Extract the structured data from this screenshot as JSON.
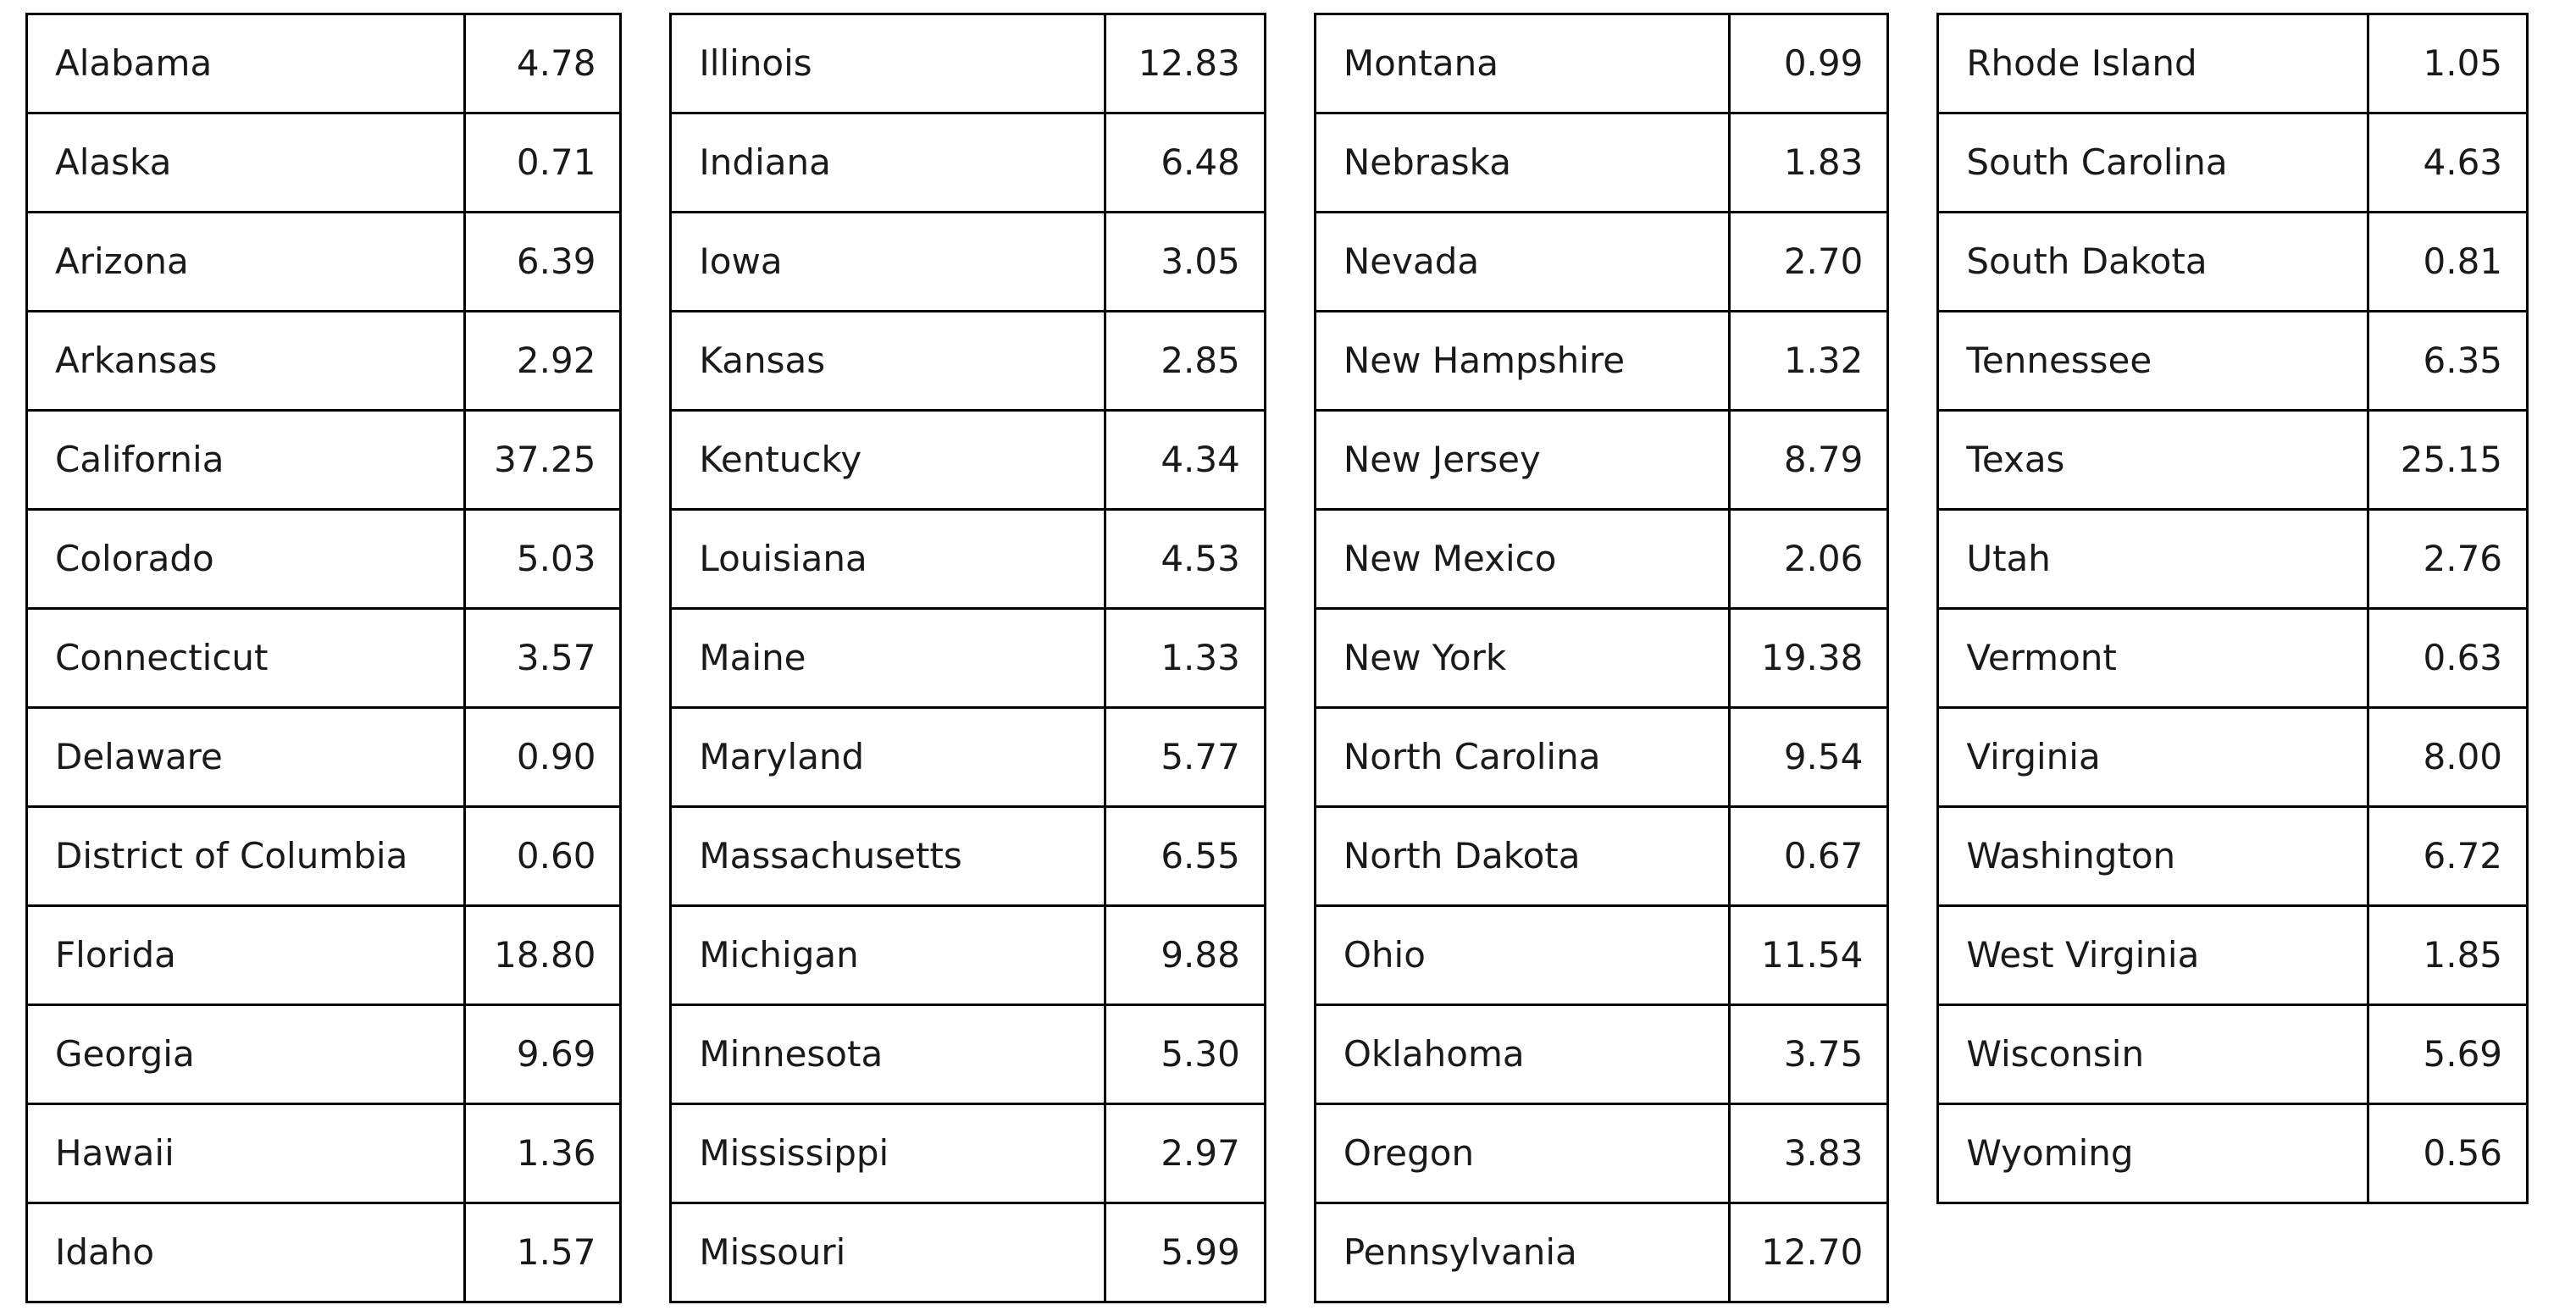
{
  "colors": {
    "background": "#ffffff",
    "border": "#000000",
    "text": "#1a1a1a"
  },
  "chart_data": {
    "type": "table",
    "columns_per_table": [
      "state",
      "value"
    ],
    "value_format": "two_decimals",
    "tables": [
      {
        "rows": [
          [
            "Alabama",
            "4.78"
          ],
          [
            "Alaska",
            "0.71"
          ],
          [
            "Arizona",
            "6.39"
          ],
          [
            "Arkansas",
            "2.92"
          ],
          [
            "California",
            "37.25"
          ],
          [
            "Colorado",
            "5.03"
          ],
          [
            "Connecticut",
            "3.57"
          ],
          [
            "Delaware",
            "0.90"
          ],
          [
            "District of Columbia",
            "0.60"
          ],
          [
            "Florida",
            "18.80"
          ],
          [
            "Georgia",
            "9.69"
          ],
          [
            "Hawaii",
            "1.36"
          ],
          [
            "Idaho",
            "1.57"
          ]
        ]
      },
      {
        "rows": [
          [
            "Illinois",
            "12.83"
          ],
          [
            "Indiana",
            "6.48"
          ],
          [
            "Iowa",
            "3.05"
          ],
          [
            "Kansas",
            "2.85"
          ],
          [
            "Kentucky",
            "4.34"
          ],
          [
            "Louisiana",
            "4.53"
          ],
          [
            "Maine",
            "1.33"
          ],
          [
            "Maryland",
            "5.77"
          ],
          [
            "Massachusetts",
            "6.55"
          ],
          [
            "Michigan",
            "9.88"
          ],
          [
            "Minnesota",
            "5.30"
          ],
          [
            "Mississippi",
            "2.97"
          ],
          [
            "Missouri",
            "5.99"
          ]
        ]
      },
      {
        "rows": [
          [
            "Montana",
            "0.99"
          ],
          [
            "Nebraska",
            "1.83"
          ],
          [
            "Nevada",
            "2.70"
          ],
          [
            "New Hampshire",
            "1.32"
          ],
          [
            "New Jersey",
            "8.79"
          ],
          [
            "New Mexico",
            "2.06"
          ],
          [
            "New York",
            "19.38"
          ],
          [
            "North Carolina",
            "9.54"
          ],
          [
            "North Dakota",
            "0.67"
          ],
          [
            "Ohio",
            "11.54"
          ],
          [
            "Oklahoma",
            "3.75"
          ],
          [
            "Oregon",
            "3.83"
          ],
          [
            "Pennsylvania",
            "12.70"
          ]
        ]
      },
      {
        "rows": [
          [
            "Rhode Island",
            "1.05"
          ],
          [
            "South Carolina",
            "4.63"
          ],
          [
            "South Dakota",
            "0.81"
          ],
          [
            "Tennessee",
            "6.35"
          ],
          [
            "Texas",
            "25.15"
          ],
          [
            "Utah",
            "2.76"
          ],
          [
            "Vermont",
            "0.63"
          ],
          [
            "Virginia",
            "8.00"
          ],
          [
            "Washington",
            "6.72"
          ],
          [
            "West Virginia",
            "1.85"
          ],
          [
            "Wisconsin",
            "5.69"
          ],
          [
            "Wyoming",
            "0.56"
          ]
        ]
      }
    ]
  }
}
